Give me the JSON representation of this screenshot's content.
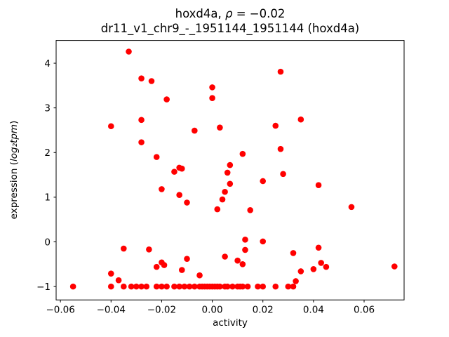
{
  "chart_data": {
    "type": "scatter",
    "title_line1": {
      "prefix": "hoxd4a, ",
      "math": "ρ",
      "suffix": " = −0.02"
    },
    "title_line2": "dr11_v1_chr9_-_1951144_1951144 (hoxd4a)",
    "xlabel": "activity",
    "ylabel": {
      "prefix": "expression (",
      "math": "log₂tpm",
      "suffix": ")"
    },
    "marker_color": "#ff0000",
    "grid": false,
    "legend": "none",
    "xlim": [
      -0.0617,
      0.0758
    ],
    "ylim": [
      -1.3,
      4.51
    ],
    "x_ticks": {
      "values": [
        -0.06,
        -0.04,
        -0.02,
        0.0,
        0.02,
        0.04,
        0.06
      ],
      "labels": [
        "−0.06",
        "−0.04",
        "−0.02",
        "0.00",
        "0.02",
        "0.04",
        "0.06"
      ]
    },
    "y_ticks": {
      "values": [
        -1,
        0,
        1,
        2,
        3,
        4
      ],
      "labels": [
        "−1",
        "0",
        "1",
        "2",
        "3",
        "4"
      ]
    },
    "points": [
      [
        -0.033,
        4.26
      ],
      [
        0.027,
        3.81
      ],
      [
        -0.028,
        3.66
      ],
      [
        -0.024,
        3.6
      ],
      [
        0.0,
        3.46
      ],
      [
        0.0,
        3.22
      ],
      [
        -0.018,
        3.19
      ],
      [
        0.035,
        2.74
      ],
      [
        -0.028,
        2.73
      ],
      [
        -0.04,
        2.59
      ],
      [
        0.025,
        2.6
      ],
      [
        0.003,
        2.56
      ],
      [
        -0.007,
        2.49
      ],
      [
        -0.028,
        2.23
      ],
      [
        0.027,
        2.08
      ],
      [
        0.012,
        1.97
      ],
      [
        -0.022,
        1.9
      ],
      [
        0.007,
        1.72
      ],
      [
        -0.013,
        1.66
      ],
      [
        -0.012,
        1.64
      ],
      [
        -0.015,
        1.57
      ],
      [
        0.006,
        1.55
      ],
      [
        0.028,
        1.52
      ],
      [
        0.02,
        1.36
      ],
      [
        0.007,
        1.3
      ],
      [
        0.042,
        1.27
      ],
      [
        -0.02,
        1.18
      ],
      [
        0.005,
        1.12
      ],
      [
        -0.013,
        1.05
      ],
      [
        0.004,
        0.95
      ],
      [
        -0.01,
        0.88
      ],
      [
        0.055,
        0.78
      ],
      [
        0.002,
        0.73
      ],
      [
        0.015,
        0.71
      ],
      [
        0.013,
        0.05
      ],
      [
        0.02,
        0.01
      ],
      [
        -0.035,
        -0.15
      ],
      [
        -0.025,
        -0.17
      ],
      [
        0.013,
        -0.18
      ],
      [
        0.042,
        -0.13
      ],
      [
        0.032,
        -0.25
      ],
      [
        0.005,
        -0.33
      ],
      [
        -0.01,
        -0.38
      ],
      [
        0.01,
        -0.42
      ],
      [
        -0.02,
        -0.46
      ],
      [
        0.043,
        -0.47
      ],
      [
        0.012,
        -0.5
      ],
      [
        -0.019,
        -0.52
      ],
      [
        -0.022,
        -0.56
      ],
      [
        0.072,
        -0.55
      ],
      [
        0.045,
        -0.56
      ],
      [
        0.04,
        -0.61
      ],
      [
        -0.012,
        -0.63
      ],
      [
        0.035,
        -0.66
      ],
      [
        -0.04,
        -0.71
      ],
      [
        -0.005,
        -0.75
      ],
      [
        -0.037,
        -0.86
      ],
      [
        0.033,
        -0.88
      ],
      [
        -0.055,
        -1
      ],
      [
        -0.04,
        -1
      ],
      [
        -0.035,
        -1
      ],
      [
        -0.032,
        -1
      ],
      [
        -0.03,
        -1
      ],
      [
        -0.028,
        -1
      ],
      [
        -0.026,
        -1
      ],
      [
        -0.022,
        -1
      ],
      [
        -0.02,
        -1
      ],
      [
        -0.018,
        -1
      ],
      [
        -0.015,
        -1
      ],
      [
        -0.013,
        -1
      ],
      [
        -0.011,
        -1
      ],
      [
        -0.009,
        -1
      ],
      [
        -0.007,
        -1
      ],
      [
        -0.005,
        -1
      ],
      [
        -0.004,
        -1
      ],
      [
        -0.003,
        -1
      ],
      [
        -0.002,
        -1
      ],
      [
        -0.001,
        -1
      ],
      [
        0.0,
        -1
      ],
      [
        0.001,
        -1
      ],
      [
        0.002,
        -1
      ],
      [
        0.003,
        -1
      ],
      [
        0.005,
        -1
      ],
      [
        0.006,
        -1
      ],
      [
        0.008,
        -1
      ],
      [
        0.01,
        -1
      ],
      [
        0.011,
        -1
      ],
      [
        0.012,
        -1
      ],
      [
        0.014,
        -1
      ],
      [
        0.018,
        -1
      ],
      [
        0.02,
        -1
      ],
      [
        0.025,
        -1
      ],
      [
        0.03,
        -1
      ],
      [
        0.032,
        -1
      ]
    ]
  }
}
